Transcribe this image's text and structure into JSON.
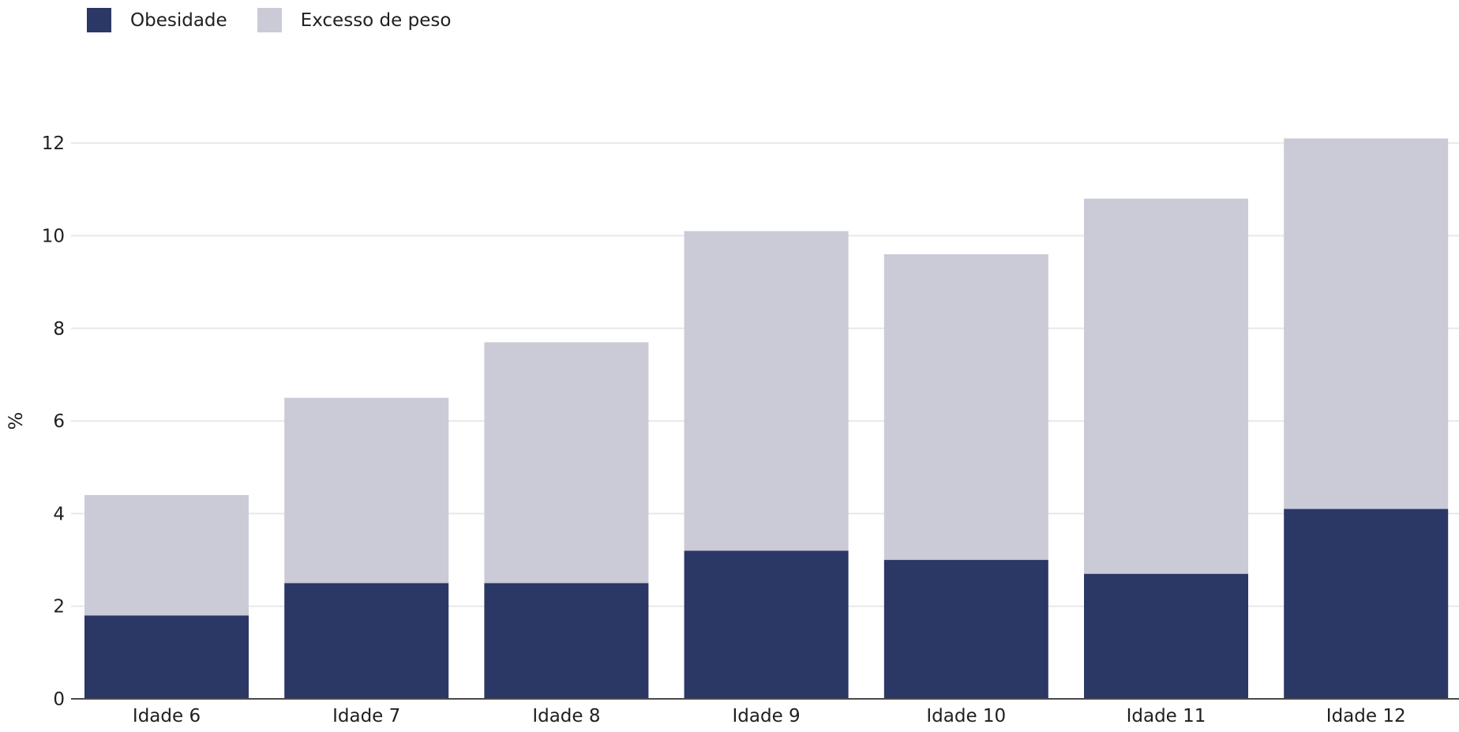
{
  "colors": {
    "obesidade": "#2b3765",
    "excesso": "#cacbd7",
    "grid": "#e8e8e8",
    "axis": "#4a4a4a"
  },
  "legend": [
    {
      "label": "Obesidade",
      "color": "#2b3765"
    },
    {
      "label": "Excesso de peso",
      "color": "#cacbd7"
    }
  ],
  "chart_data": {
    "type": "bar",
    "stacked": true,
    "categories": [
      "Idade 6",
      "Idade 7",
      "Idade 8",
      "Idade 9",
      "Idade 10",
      "Idade 11",
      "Idade 12"
    ],
    "series": [
      {
        "name": "Obesidade",
        "values": [
          1.8,
          2.5,
          2.5,
          3.2,
          3.0,
          2.7,
          4.1
        ]
      },
      {
        "name": "Excesso de peso",
        "values": [
          2.6,
          4.0,
          5.2,
          6.9,
          6.6,
          8.1,
          8.0
        ]
      }
    ],
    "ylabel": "%",
    "xlabel": "",
    "ylim": [
      0,
      12.6
    ],
    "yticks": [
      0,
      2,
      4,
      6,
      8,
      10,
      12
    ],
    "grid": true,
    "legend_position": "top-left"
  }
}
